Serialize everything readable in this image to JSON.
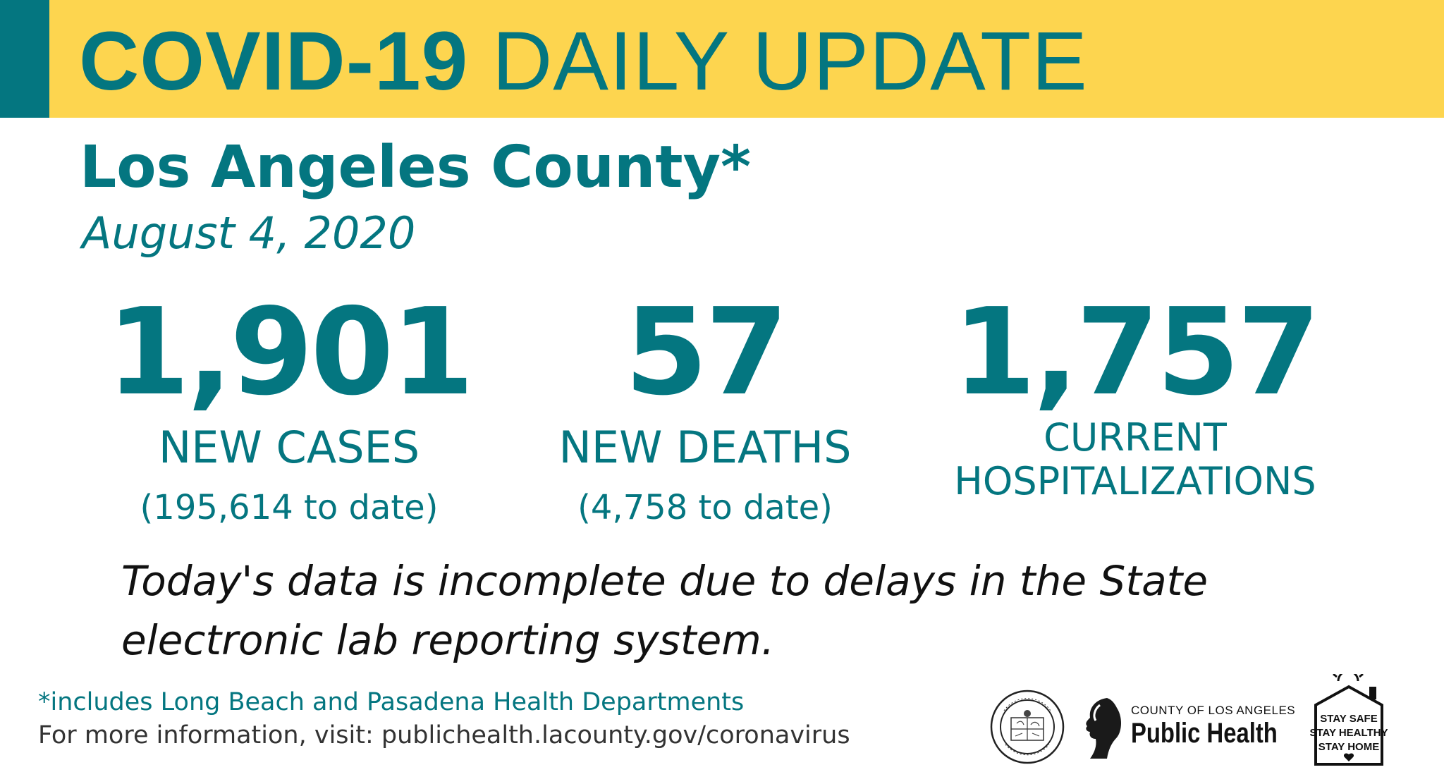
{
  "header": {
    "title_bold": "COVID-19",
    "title_rest": "DAILY UPDATE"
  },
  "location": "Los Angeles County*",
  "date": "August 4, 2020",
  "stats": {
    "cases": {
      "value": "1,901",
      "label": "NEW CASES",
      "to_date": "(195,614 to date)"
    },
    "deaths": {
      "value": "57",
      "label": "NEW DEATHS",
      "to_date": "(4,758 to date)"
    },
    "hospitalizations": {
      "value": "1,757",
      "label_line1": "CURRENT",
      "label_line2": "HOSPITALIZATIONS"
    }
  },
  "notice": "Today's data is incomplete due to delays in the State electronic lab reporting system.",
  "footnote": "*includes Long Beach and Pasadena Health Departments",
  "more_info": "For more information, visit: publichealth.lacounty.gov/coronavirus",
  "logos": {
    "seal_text": "COUNTY OF LOS ANGELES · CALIFORNIA",
    "public_health_small": "COUNTY OF LOS ANGELES",
    "public_health_big": "Public Health",
    "stay_line1": "STAY SAFE",
    "stay_line2": "STAY HEALTHY",
    "stay_line3": "STAY HOME"
  },
  "colors": {
    "teal": "#047680",
    "yellow": "#fdd54f",
    "text_dark": "#111111"
  }
}
